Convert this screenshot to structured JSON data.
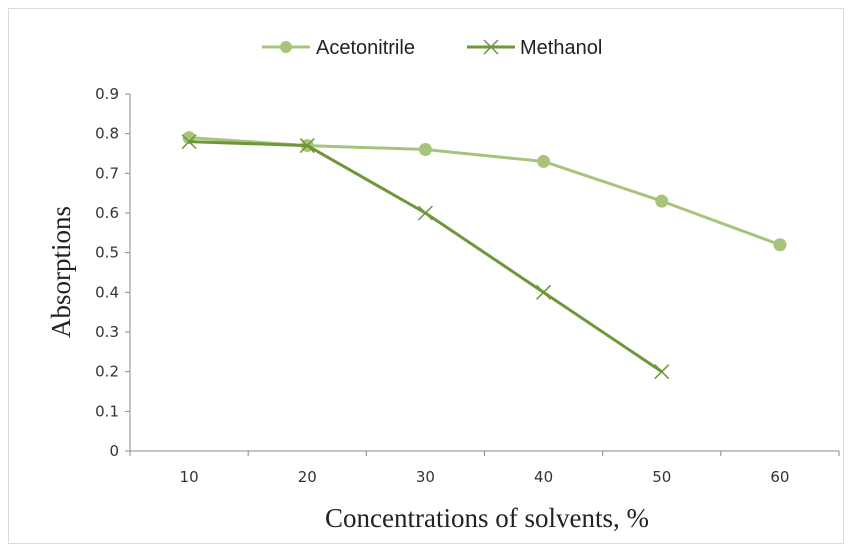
{
  "chart_data": {
    "type": "line",
    "xlabel": "Concentrations of solvents, %",
    "ylabel": "Absorptions",
    "categories": [
      "10",
      "20",
      "30",
      "40",
      "50",
      "60"
    ],
    "yticks": [
      "0",
      "0.1",
      "0.2",
      "0.3",
      "0.4",
      "0.5",
      "0.6",
      "0.7",
      "0.8",
      "0.9"
    ],
    "ylim": [
      0,
      0.9
    ],
    "grid": false,
    "legend_position": "top",
    "series": [
      {
        "name": "Acetonitrile",
        "marker": "circle",
        "color": "#a8c47c",
        "x": [
          10,
          20,
          30,
          40,
          50,
          60
        ],
        "values": [
          0.79,
          0.77,
          0.76,
          0.73,
          0.63,
          0.52
        ]
      },
      {
        "name": "Methanol",
        "marker": "x",
        "color": "#6f963a",
        "x": [
          10,
          20,
          30,
          40,
          50
        ],
        "values": [
          0.78,
          0.77,
          0.6,
          0.4,
          0.2
        ]
      }
    ]
  }
}
